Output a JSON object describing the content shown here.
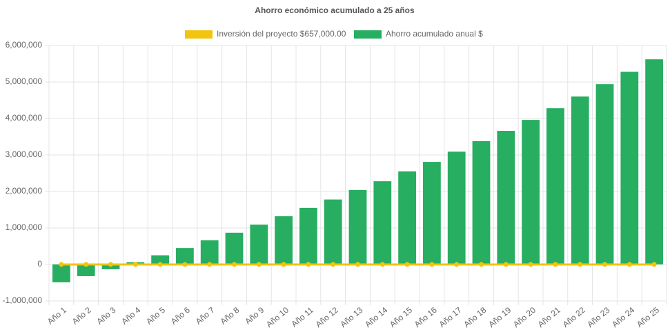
{
  "chart_data": {
    "type": "bar",
    "title": "Ahorro económico acumulado a 25 años",
    "categories": [
      "Año 1",
      "Año 2",
      "Año 3",
      "Año 4",
      "Año 5",
      "Año 6",
      "Año 7",
      "Año 8",
      "Año 9",
      "Año 10",
      "Año 11",
      "Año 12",
      "Año 13",
      "Año 14",
      "Año 15",
      "Año 16",
      "Año 17",
      "Año 18",
      "Año 19",
      "Año 20",
      "Año 21",
      "Año 22",
      "Año 23",
      "Año 24",
      "Año 25"
    ],
    "series": [
      {
        "name": "Inversión del proyecto $657,000.00",
        "type": "line",
        "color": "#f1c40f",
        "values": [
          0,
          0,
          0,
          0,
          0,
          0,
          0,
          0,
          0,
          0,
          0,
          0,
          0,
          0,
          0,
          0,
          0,
          0,
          0,
          0,
          0,
          0,
          0,
          0,
          0
        ]
      },
      {
        "name": "Ahorro acumulado anual $",
        "type": "bar",
        "color": "#27ae60",
        "values": [
          -490000,
          -320000,
          -130000,
          60000,
          250000,
          450000,
          660000,
          870000,
          1090000,
          1320000,
          1550000,
          1780000,
          2040000,
          2280000,
          2550000,
          2810000,
          3090000,
          3380000,
          3660000,
          3960000,
          4280000,
          4600000,
          4940000,
          5280000,
          5620000
        ]
      }
    ],
    "ylim": [
      -1000000,
      6000000
    ],
    "yticks": [
      {
        "value": -1000000,
        "label": "-1,000,000"
      },
      {
        "value": 0,
        "label": "0"
      },
      {
        "value": 1000000,
        "label": "1,000,000"
      },
      {
        "value": 2000000,
        "label": "2,000,000"
      },
      {
        "value": 3000000,
        "label": "3,000,000"
      },
      {
        "value": 4000000,
        "label": "4,000,000"
      },
      {
        "value": 5000000,
        "label": "5,000,000"
      },
      {
        "value": 6000000,
        "label": "6,000,000"
      }
    ],
    "grid": true
  }
}
